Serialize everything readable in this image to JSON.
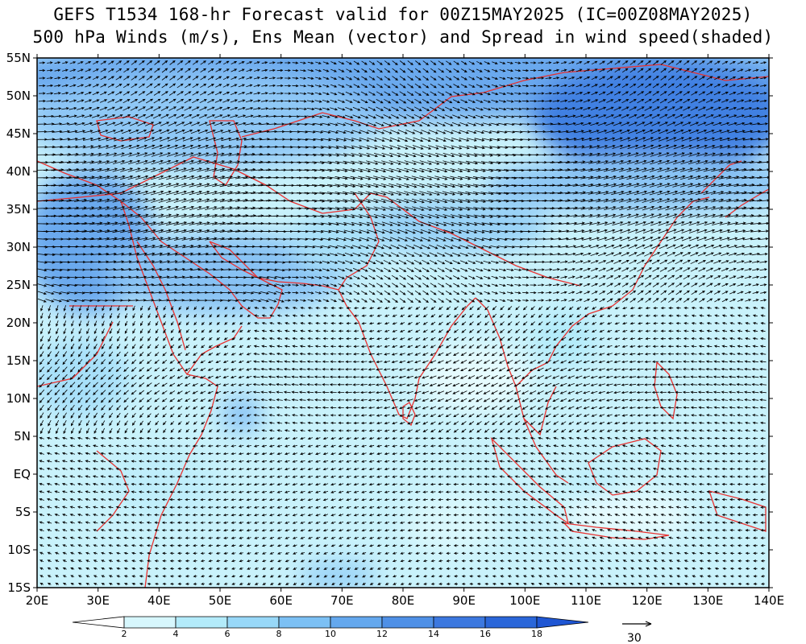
{
  "title": {
    "line1": "GEFS T1534 168-hr Forecast valid for 00Z15MAY2025 (IC=00Z08MAY2025)",
    "line2": "500 hPa Winds (m/s), Ens Mean (vector) and Spread in wind speed(shaded)"
  },
  "map": {
    "lon_range": [
      20,
      140
    ],
    "lat_range": [
      -15,
      55
    ],
    "lat_labels": [
      "55N",
      "50N",
      "45N",
      "40N",
      "35N",
      "30N",
      "25N",
      "20N",
      "15N",
      "10N",
      "5N",
      "EQ",
      "5S",
      "10S",
      "15S"
    ],
    "lon_labels": [
      "20E",
      "30E",
      "40E",
      "50E",
      "60E",
      "70E",
      "80E",
      "90E",
      "100E",
      "110E",
      "120E",
      "130E",
      "140E"
    ],
    "coastline_color": "#e8312f",
    "vector_color": "#000000"
  },
  "colorbar": {
    "levels": [
      "2",
      "4",
      "6",
      "8",
      "10",
      "12",
      "14",
      "16",
      "18"
    ],
    "colors": [
      "#ffffff",
      "#d7f7fd",
      "#b3ebfa",
      "#98d8f8",
      "#7cc0f4",
      "#64a8ee",
      "#4f90e6",
      "#3c78df",
      "#2a66d9",
      "#1f56d3"
    ]
  },
  "reference_vector": {
    "label": "30"
  }
}
